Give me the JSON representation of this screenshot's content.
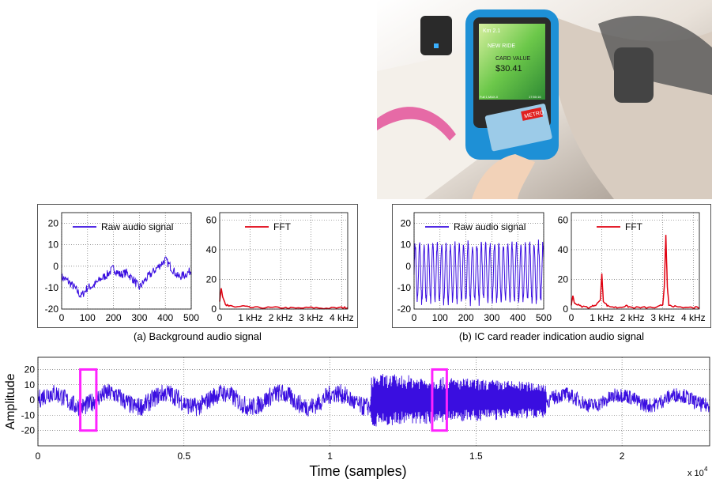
{
  "photo": {
    "screen_km": "Km 2.1",
    "screen_ride": "NEW RIDE",
    "screen_value_label": "CARD VALUE",
    "screen_value": "$30.41",
    "screen_footer_left": "Full 1,MAX-0",
    "screen_footer_right": "17:50:16",
    "card_logo": "METRO"
  },
  "captions": {
    "a": "(a) Background audio signal",
    "b": "(b) IC card reader indication audio signal"
  },
  "colors": {
    "signal": "#3a0ee0",
    "fft": "#e00010",
    "box": "#ff22ff",
    "grid": "#555555"
  },
  "chart_data": [
    {
      "id": "a-raw",
      "type": "line",
      "legend": "Raw audio signal",
      "xlim": [
        0,
        500
      ],
      "ylim": [
        -20,
        25
      ],
      "xticks": [
        "0",
        "100",
        "200",
        "300",
        "400",
        "500"
      ],
      "yticks": [
        "-20",
        "-10",
        "0",
        "10",
        "20"
      ],
      "x": [
        0,
        25,
        50,
        75,
        100,
        125,
        150,
        175,
        200,
        225,
        250,
        275,
        300,
        325,
        350,
        375,
        400,
        425,
        450,
        475,
        500
      ],
      "values": [
        -5,
        -7,
        -10,
        -14,
        -10,
        -9,
        -6,
        -4,
        -1,
        -4,
        -3,
        -6,
        -10,
        -6,
        -3,
        0,
        3,
        -1,
        -5,
        -4,
        -2
      ]
    },
    {
      "id": "a-fft",
      "type": "line",
      "legend": "FFT",
      "xlim": [
        0,
        4.2
      ],
      "ylim": [
        0,
        65
      ],
      "xticks": [
        "1 kHz",
        "2 kHz",
        "3 kHz",
        "4 kHz"
      ],
      "yticks": [
        "0",
        "20",
        "40",
        "60"
      ],
      "x": [
        0,
        0.05,
        0.1,
        0.2,
        0.3,
        0.5,
        0.8,
        1.0,
        1.5,
        2.0,
        2.5,
        3.0,
        3.5,
        4.0,
        4.2
      ],
      "values": [
        5,
        14,
        8,
        3,
        2,
        1.5,
        2,
        1,
        1,
        1,
        0.5,
        1,
        0.5,
        1,
        1
      ]
    },
    {
      "id": "b-raw",
      "type": "line",
      "legend": "Raw audio signal",
      "xlim": [
        0,
        500
      ],
      "ylim": [
        -20,
        25
      ],
      "xticks": [
        "0",
        "100",
        "200",
        "300",
        "400",
        "500"
      ],
      "yticks": [
        "-20",
        "-10",
        "0",
        "10",
        "20"
      ],
      "period_samples": 17,
      "amplitude": 13,
      "offset": -3
    },
    {
      "id": "b-fft",
      "type": "line",
      "legend": "FFT",
      "xlim": [
        0,
        4.2
      ],
      "ylim": [
        0,
        65
      ],
      "xticks": [
        "1 kHz",
        "2 kHz",
        "3 kHz",
        "4 kHz"
      ],
      "yticks": [
        "0",
        "20",
        "40",
        "60"
      ],
      "x": [
        0,
        0.05,
        0.1,
        0.3,
        0.6,
        0.8,
        0.95,
        1.0,
        1.05,
        1.2,
        1.5,
        1.8,
        2.0,
        2.4,
        2.8,
        3.0,
        3.05,
        3.1,
        3.15,
        3.2,
        3.5,
        4.0,
        4.2
      ],
      "values": [
        3,
        9,
        4,
        2,
        1,
        3,
        6,
        24,
        5,
        2,
        1,
        2,
        1,
        1,
        1,
        3,
        15,
        50,
        15,
        3,
        1,
        1,
        1
      ]
    },
    {
      "id": "main",
      "type": "line",
      "xlabel": "Time (samples)",
      "ylabel": "Amplitude",
      "xlim": [
        0,
        23000
      ],
      "ylim": [
        -30,
        28
      ],
      "xtick_values": [
        0,
        5000,
        10000,
        15000,
        20000
      ],
      "xticks": [
        "0",
        "0.5",
        "1",
        "1.5",
        "2"
      ],
      "x_multiplier": "x 10",
      "x_multiplier_exp": "4",
      "yticks": [
        "-20",
        "-10",
        "0",
        "10",
        "20"
      ],
      "segments": [
        {
          "x_start": 0,
          "x_end": 11400,
          "kind": "background",
          "amplitude": 9
        },
        {
          "x_start": 11400,
          "x_end": 17400,
          "kind": "card-reader",
          "amplitude": 16
        },
        {
          "x_start": 17400,
          "x_end": 23000,
          "kind": "background",
          "amplitude": 7
        }
      ],
      "highlight_windows": [
        {
          "x_start": 1450,
          "x_end": 2000,
          "y_low": -20,
          "y_high": 20
        },
        {
          "x_start": 13500,
          "x_end": 14000,
          "y_low": -20,
          "y_high": 20
        }
      ]
    }
  ]
}
